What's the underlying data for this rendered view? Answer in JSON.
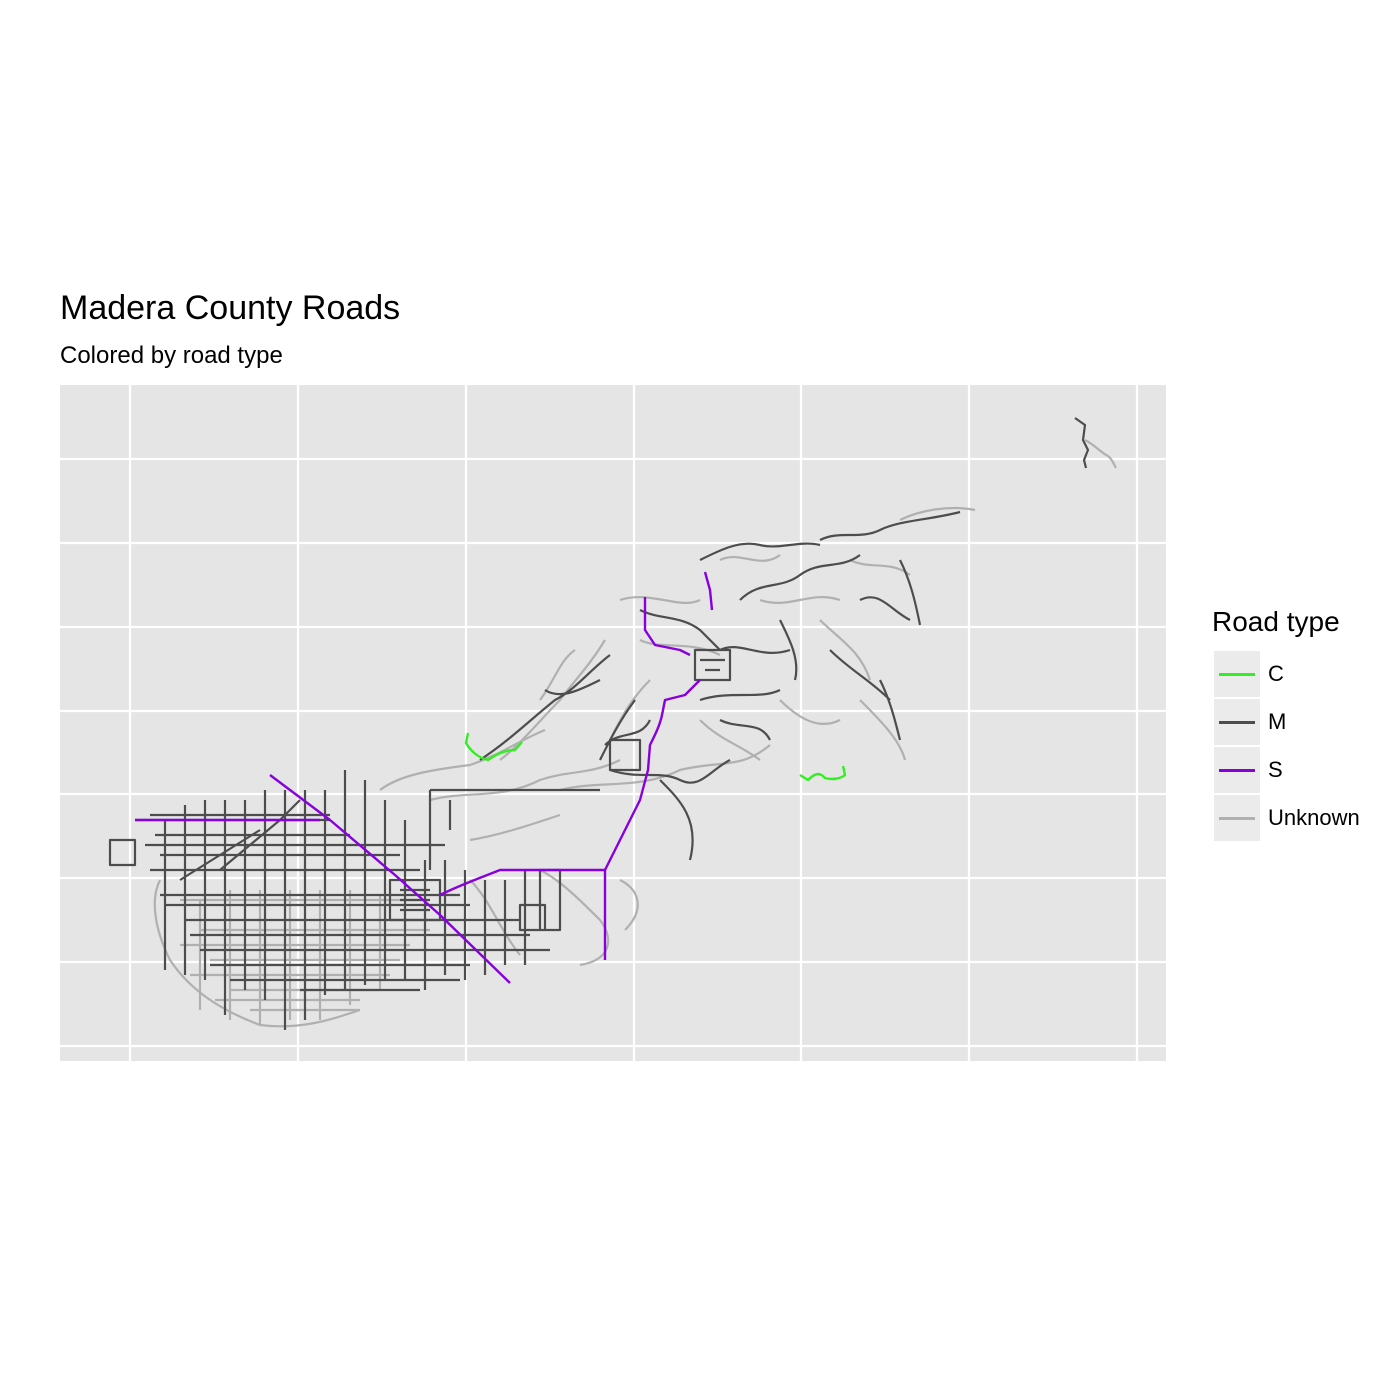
{
  "title": "Madera County Roads",
  "subtitle": "Colored by road type",
  "legend": {
    "title": "Road type",
    "items": [
      {
        "label": "C",
        "color": "#33ee22"
      },
      {
        "label": "M",
        "color": "#4d4d4d"
      },
      {
        "label": "S",
        "color": "#8800dd"
      },
      {
        "label": "Unknown",
        "color": "#b0b0b0"
      }
    ]
  },
  "map": {
    "panel_color": "#e5e5e5",
    "grid_color": "#ffffff",
    "axes_labels_shown": false,
    "graticule": true
  }
}
